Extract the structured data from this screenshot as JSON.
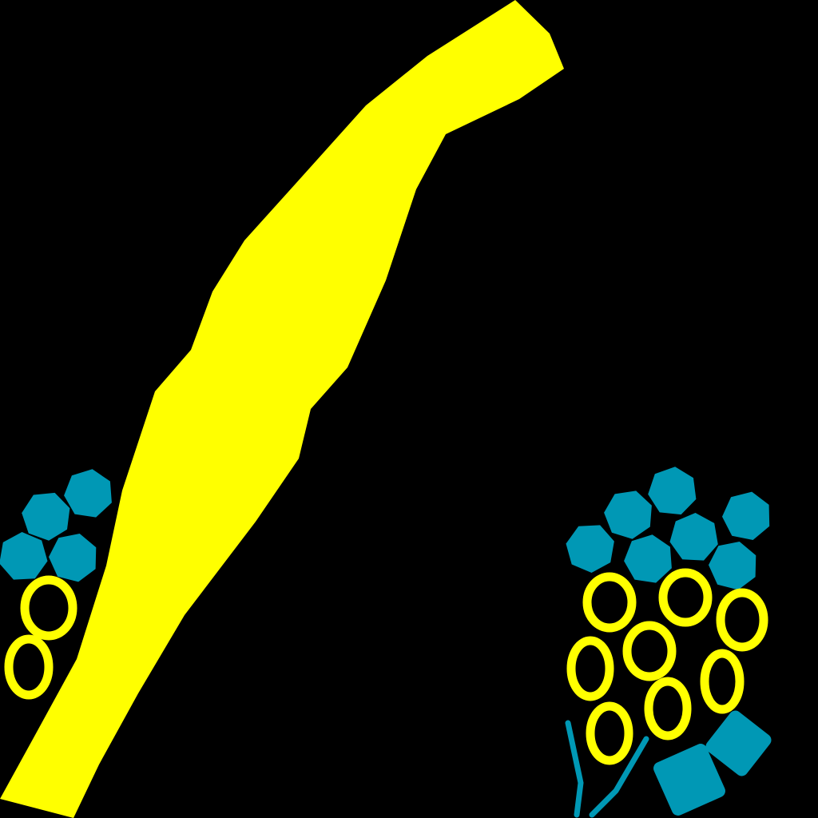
{
  "scene": {
    "background_color": "#000000",
    "colors": {
      "yellow": "#ffff00",
      "teal": "#0098b5"
    },
    "elements": [
      "yellow-diagonal-band",
      "left-teal-heptagon-cluster",
      "left-yellow-ring-cluster",
      "right-teal-heptagon-cluster",
      "right-yellow-ring-cluster",
      "teal-stick-shapes",
      "teal-rounded-rectangles"
    ]
  }
}
